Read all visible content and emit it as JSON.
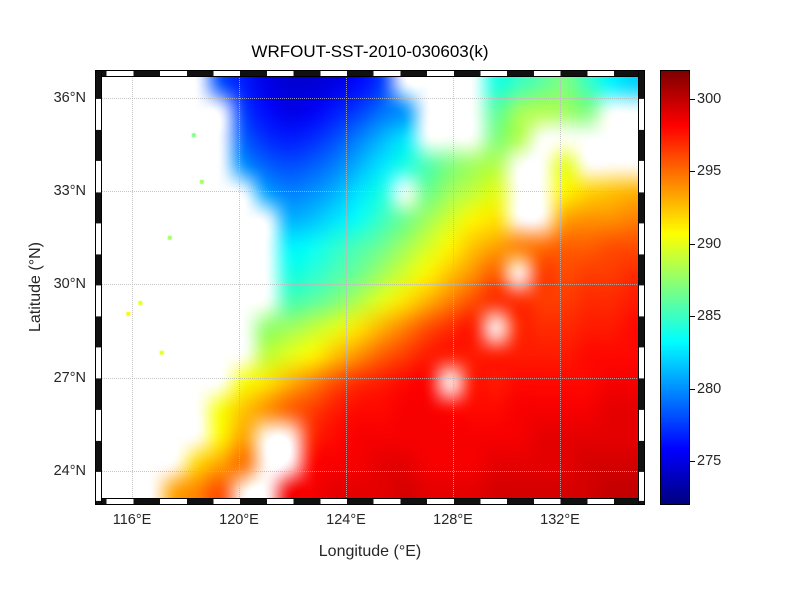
{
  "title": "WRFOUT-SST-2010-030603(k)",
  "xlabel": "Longitude (°E)",
  "ylabel": "Latitude (°N)",
  "x_ticks": [
    {
      "value": 116,
      "label": "116°E"
    },
    {
      "value": 120,
      "label": "120°E"
    },
    {
      "value": 124,
      "label": "124°E"
    },
    {
      "value": 128,
      "label": "128°E"
    },
    {
      "value": 132,
      "label": "132°E"
    }
  ],
  "y_ticks": [
    {
      "value": 36,
      "label": "36°N"
    },
    {
      "value": 33,
      "label": "33°N"
    },
    {
      "value": 30,
      "label": "30°N"
    },
    {
      "value": 27,
      "label": "27°N"
    },
    {
      "value": 24,
      "label": "24°N"
    }
  ],
  "colorbar": {
    "min": 272,
    "max": 302,
    "tick_values": [
      300,
      295,
      290,
      285,
      280,
      275
    ],
    "tick_labels": [
      "300",
      "295",
      "290",
      "285",
      "280",
      "275"
    ]
  },
  "chart_data": {
    "type": "heatmap",
    "title": "WRFOUT-SST-2010-030603(k)",
    "xlabel": "Longitude (°E)",
    "ylabel": "Latitude (°N)",
    "units": "K",
    "colormap": "jet",
    "color_range": [
      272,
      302
    ],
    "x_range": [
      114.6,
      135.2
    ],
    "y_range": [
      22.9,
      36.9
    ],
    "legend": "none",
    "grid": true,
    "land_color": "#ffffff",
    "lon": [
      115.0,
      115.9,
      116.7,
      117.6,
      118.4,
      119.3,
      120.1,
      121.0,
      121.9,
      122.7,
      123.6,
      124.4,
      125.3,
      126.1,
      127.0,
      127.9,
      128.7,
      129.6,
      130.4,
      131.3,
      132.1,
      133.0,
      133.9,
      134.7
    ],
    "lat": [
      36.5,
      35.6,
      34.7,
      33.9,
      33.0,
      32.1,
      31.2,
      30.4,
      29.5,
      28.6,
      27.7,
      26.9,
      26.0,
      25.1,
      24.2,
      23.4
    ],
    "sst": [
      [
        null,
        null,
        null,
        null,
        null,
        278,
        276.5,
        275,
        274.5,
        274.5,
        275,
        276,
        277.5,
        null,
        null,
        null,
        null,
        284,
        285,
        286,
        287,
        285,
        283,
        282
      ],
      [
        null,
        null,
        null,
        null,
        null,
        null,
        277.5,
        276,
        275,
        275.5,
        276.5,
        277.5,
        279,
        280,
        null,
        null,
        null,
        286,
        288,
        288.5,
        288,
        287,
        null,
        null
      ],
      [
        null,
        null,
        null,
        null,
        null,
        null,
        278.5,
        277,
        276.5,
        277,
        278,
        279.5,
        281,
        282.5,
        null,
        null,
        null,
        287,
        288.5,
        null,
        null,
        null,
        null,
        null
      ],
      [
        null,
        null,
        null,
        null,
        null,
        null,
        280,
        278.5,
        278,
        278.5,
        279.5,
        281,
        282.5,
        284,
        285.5,
        287,
        288,
        288.5,
        null,
        null,
        290,
        null,
        null,
        null
      ],
      [
        null,
        null,
        null,
        null,
        null,
        null,
        null,
        280.5,
        279.5,
        280,
        281,
        282.5,
        284,
        null,
        286.5,
        288,
        289,
        290,
        null,
        null,
        291,
        292,
        292.5,
        293
      ],
      [
        null,
        null,
        null,
        null,
        null,
        null,
        null,
        null,
        281,
        281.5,
        282.5,
        283.5,
        285,
        286.5,
        288,
        289.5,
        291,
        291.5,
        null,
        null,
        293.5,
        294,
        294,
        294.5
      ],
      [
        null,
        null,
        null,
        null,
        null,
        null,
        null,
        null,
        283,
        283.5,
        284.5,
        285.5,
        286.5,
        288,
        289.5,
        291,
        292.5,
        293.5,
        294.5,
        295,
        295.5,
        295.5,
        296,
        296
      ],
      [
        null,
        null,
        null,
        null,
        null,
        null,
        null,
        null,
        284,
        284.5,
        285.5,
        286.5,
        288,
        289.5,
        291,
        292.5,
        294,
        295.5,
        null,
        296.5,
        296,
        296.5,
        296.5,
        297
      ],
      [
        null,
        null,
        null,
        null,
        null,
        null,
        null,
        null,
        285.5,
        286,
        287,
        288.5,
        290,
        291.5,
        293,
        294.5,
        296,
        297,
        297,
        296.5,
        296.5,
        297,
        297,
        297.5
      ],
      [
        null,
        null,
        null,
        null,
        null,
        null,
        null,
        287.5,
        288,
        289,
        290,
        291.5,
        293,
        294.5,
        296,
        297,
        297.5,
        null,
        297,
        297,
        297,
        297.5,
        297.5,
        298
      ],
      [
        null,
        null,
        null,
        null,
        null,
        null,
        null,
        289,
        290,
        291,
        292.5,
        294,
        295.5,
        296.5,
        297.5,
        297.5,
        297.5,
        297.5,
        297.5,
        297.5,
        297.5,
        298,
        298,
        298
      ],
      [
        null,
        null,
        null,
        null,
        null,
        null,
        290.5,
        291.5,
        293,
        294.5,
        296,
        297,
        297.5,
        298,
        298,
        null,
        297.5,
        297.5,
        298,
        298,
        298,
        298,
        298.5,
        298.5
      ],
      [
        null,
        null,
        null,
        null,
        null,
        290.5,
        292.5,
        294,
        295.5,
        296.5,
        297.5,
        298,
        298,
        298.5,
        298.5,
        298,
        298,
        298,
        298.5,
        298.5,
        298.5,
        298.5,
        299,
        299
      ],
      [
        null,
        null,
        null,
        null,
        null,
        291,
        293.5,
        null,
        null,
        297,
        298,
        298.5,
        298.5,
        298.5,
        298.5,
        298.5,
        298.5,
        298.5,
        298.5,
        299,
        299,
        299,
        299,
        299
      ],
      [
        null,
        null,
        null,
        null,
        292,
        293.5,
        295,
        null,
        null,
        298,
        298.5,
        298.5,
        299,
        299,
        298.5,
        298.5,
        298.5,
        299,
        299,
        299,
        299,
        299.5,
        299.5,
        299.5
      ],
      [
        null,
        null,
        null,
        293.5,
        294.5,
        296,
        null,
        null,
        298.5,
        298.5,
        299,
        299,
        299,
        299.5,
        299,
        299,
        299,
        299.5,
        299.5,
        299.5,
        299.5,
        299.5,
        300,
        300
      ]
    ],
    "speckles": [
      {
        "lon": 116.3,
        "lat": 29.4,
        "sst": 290
      },
      {
        "lon": 115.85,
        "lat": 29.05,
        "sst": 291
      },
      {
        "lon": 117.4,
        "lat": 31.5,
        "sst": 288
      },
      {
        "lon": 118.6,
        "lat": 33.3,
        "sst": 288
      },
      {
        "lon": 118.3,
        "lat": 34.8,
        "sst": 287
      },
      {
        "lon": 117.1,
        "lat": 27.8,
        "sst": 290
      }
    ]
  }
}
